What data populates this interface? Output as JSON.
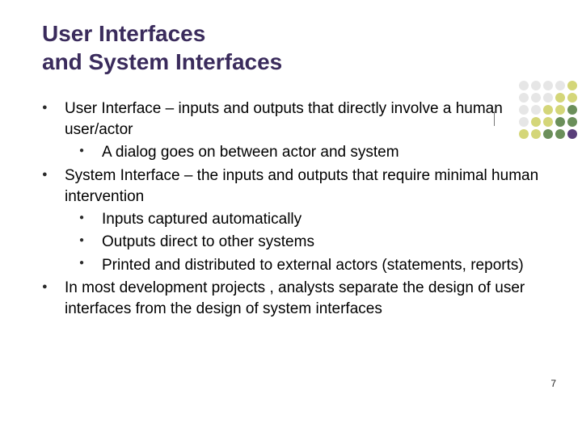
{
  "page": {
    "number": "7"
  },
  "title": {
    "line1": "User Interfaces",
    "line2": "and System Interfaces",
    "color": "#3a2b5c",
    "fontsize": 28
  },
  "content": {
    "fontsize": 19,
    "items": [
      {
        "text": "User Interface – inputs and outputs that directly involve a human user/actor",
        "sub": [
          "A dialog goes on between actor and system"
        ]
      },
      {
        "text": "System Interface – the inputs and outputs that require minimal human intervention",
        "sub": [
          "Inputs captured automatically",
          "Outputs direct to other systems",
          "Printed and distributed to external actors (statements, reports)"
        ]
      },
      {
        "text": "In most development projects , analysts separate the design of user interfaces from the design of system interfaces",
        "sub": []
      }
    ]
  },
  "decoration": {
    "dots": [
      "#e6e6e6",
      "#e6e6e6",
      "#e6e6e6",
      "#e6e6e6",
      "#d4d679",
      "#e6e6e6",
      "#e6e6e6",
      "#e6e6e6",
      "#d4d679",
      "#d4d679",
      "#e6e6e6",
      "#e6e6e6",
      "#d4d679",
      "#d4d679",
      "#6b8f5a",
      "#e6e6e6",
      "#d4d679",
      "#d4d679",
      "#6b8f5a",
      "#6b8f5a",
      "#d4d679",
      "#d4d679",
      "#6b8f5a",
      "#6b8f5a",
      "#5a3f7a"
    ]
  },
  "colors": {
    "background": "#ffffff",
    "body_text": "#000000",
    "bullet": "#2b2b2b"
  }
}
